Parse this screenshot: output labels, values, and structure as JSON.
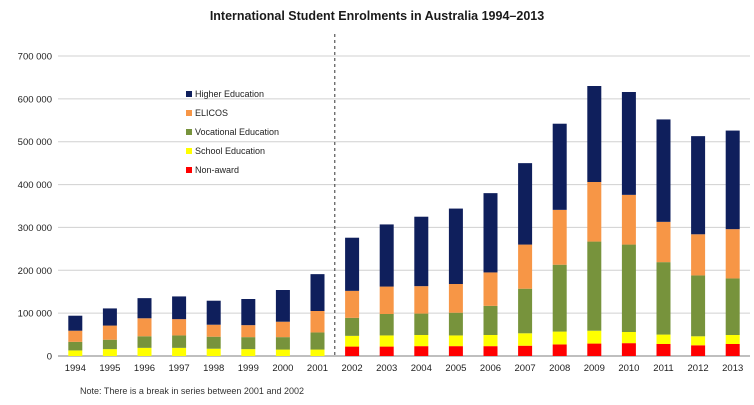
{
  "chart_data": {
    "type": "bar",
    "stacked": true,
    "title": "International Student Enrolments in Australia 1994–2013",
    "xlabel": "",
    "ylabel": "",
    "ylim": [
      0,
      700000
    ],
    "yticks": [
      0,
      100000,
      200000,
      300000,
      400000,
      500000,
      600000,
      700000
    ],
    "ytick_labels": [
      "0",
      "100 000",
      "200 000",
      "300 000",
      "400 000",
      "500 000",
      "600 000",
      "700 000"
    ],
    "grid": "horizontal",
    "legend_position": "top-left",
    "categories": [
      "1994",
      "1995",
      "1996",
      "1997",
      "1998",
      "1999",
      "2000",
      "2001",
      "2002",
      "2003",
      "2004",
      "2005",
      "2006",
      "2007",
      "2008",
      "2009",
      "2010",
      "2011",
      "2012",
      "2013"
    ],
    "series": [
      {
        "name": "Non-award",
        "color": "#ff0000",
        "values": [
          0,
          0,
          0,
          0,
          0,
          0,
          0,
          0,
          22000,
          22000,
          23000,
          23000,
          23000,
          24000,
          27000,
          29000,
          30000,
          28000,
          25000,
          28000
        ]
      },
      {
        "name": "School Education",
        "color": "#ffff00",
        "values": [
          13000,
          16000,
          19000,
          19000,
          17000,
          16000,
          15000,
          15000,
          25000,
          26000,
          26000,
          25000,
          26000,
          29000,
          30000,
          30000,
          26000,
          22000,
          21000,
          21000
        ]
      },
      {
        "name": "Vocational Education",
        "color": "#77933c",
        "values": [
          20000,
          22000,
          27000,
          29000,
          28000,
          28000,
          29000,
          40000,
          42000,
          50000,
          50000,
          53000,
          68000,
          104000,
          156000,
          208000,
          204000,
          169000,
          142000,
          132000
        ]
      },
      {
        "name": "ELICOS",
        "color": "#f79646",
        "values": [
          26000,
          33000,
          42000,
          38000,
          28000,
          28000,
          36000,
          50000,
          63000,
          64000,
          64000,
          67000,
          78000,
          103000,
          128000,
          139000,
          116000,
          94000,
          96000,
          115000
        ]
      },
      {
        "name": "Higher Education",
        "color": "#0f1f5c",
        "values": [
          35000,
          40000,
          47000,
          53000,
          56000,
          61000,
          74000,
          86000,
          124000,
          145000,
          162000,
          176000,
          185000,
          190000,
          201000,
          224000,
          240000,
          239000,
          229000,
          230000
        ]
      }
    ],
    "legend_order": [
      "Higher Education",
      "ELICOS",
      "Vocational Education",
      "School Education",
      "Non-award"
    ],
    "break_between": [
      "2001",
      "2002"
    ],
    "note": "Note: There is a break in series between 2001 and 2002"
  }
}
